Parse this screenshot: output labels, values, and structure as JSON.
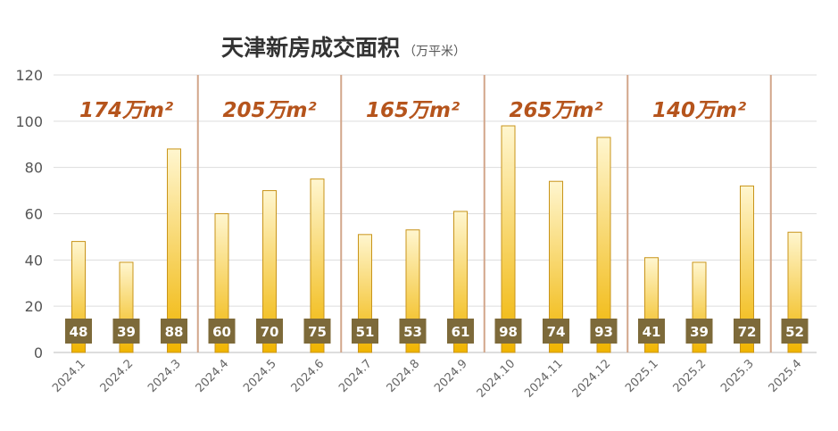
{
  "chart_data": {
    "type": "bar",
    "title": "天津新房成交面积",
    "subtitle": "（万平米）",
    "xlabel": "",
    "ylabel": "",
    "ylim": [
      0,
      120
    ],
    "yticks": [
      0,
      20,
      40,
      60,
      80,
      100,
      120
    ],
    "grid": true,
    "categories": [
      "2024.1",
      "2024.2",
      "2024.3",
      "2024.4",
      "2024.5",
      "2024.6",
      "2024.7",
      "2024.8",
      "2024.9",
      "2024.10",
      "2024.11",
      "2024.12",
      "2025.1",
      "2025.2",
      "2025.3",
      "2025.4"
    ],
    "values": [
      48,
      39,
      88,
      60,
      70,
      75,
      51,
      53,
      61,
      98,
      74,
      93,
      41,
      39,
      72,
      52
    ],
    "groups": [
      {
        "total_label": "174万m²",
        "size": 3
      },
      {
        "total_label": "205万m²",
        "size": 3
      },
      {
        "total_label": "165万m²",
        "size": 3
      },
      {
        "total_label": "265万m²",
        "size": 3
      },
      {
        "total_label": "140万m²",
        "size": 3
      },
      {
        "size": 1
      }
    ]
  },
  "colors": {
    "bar_top": "#fff6cf",
    "bar_bottom": "#f0b400",
    "bar_edge": "#c8941a",
    "value_box": "#7d6a3a",
    "quarter_total": "#b5541c",
    "separator": "#d2a68a",
    "grid": "#dddddd"
  }
}
